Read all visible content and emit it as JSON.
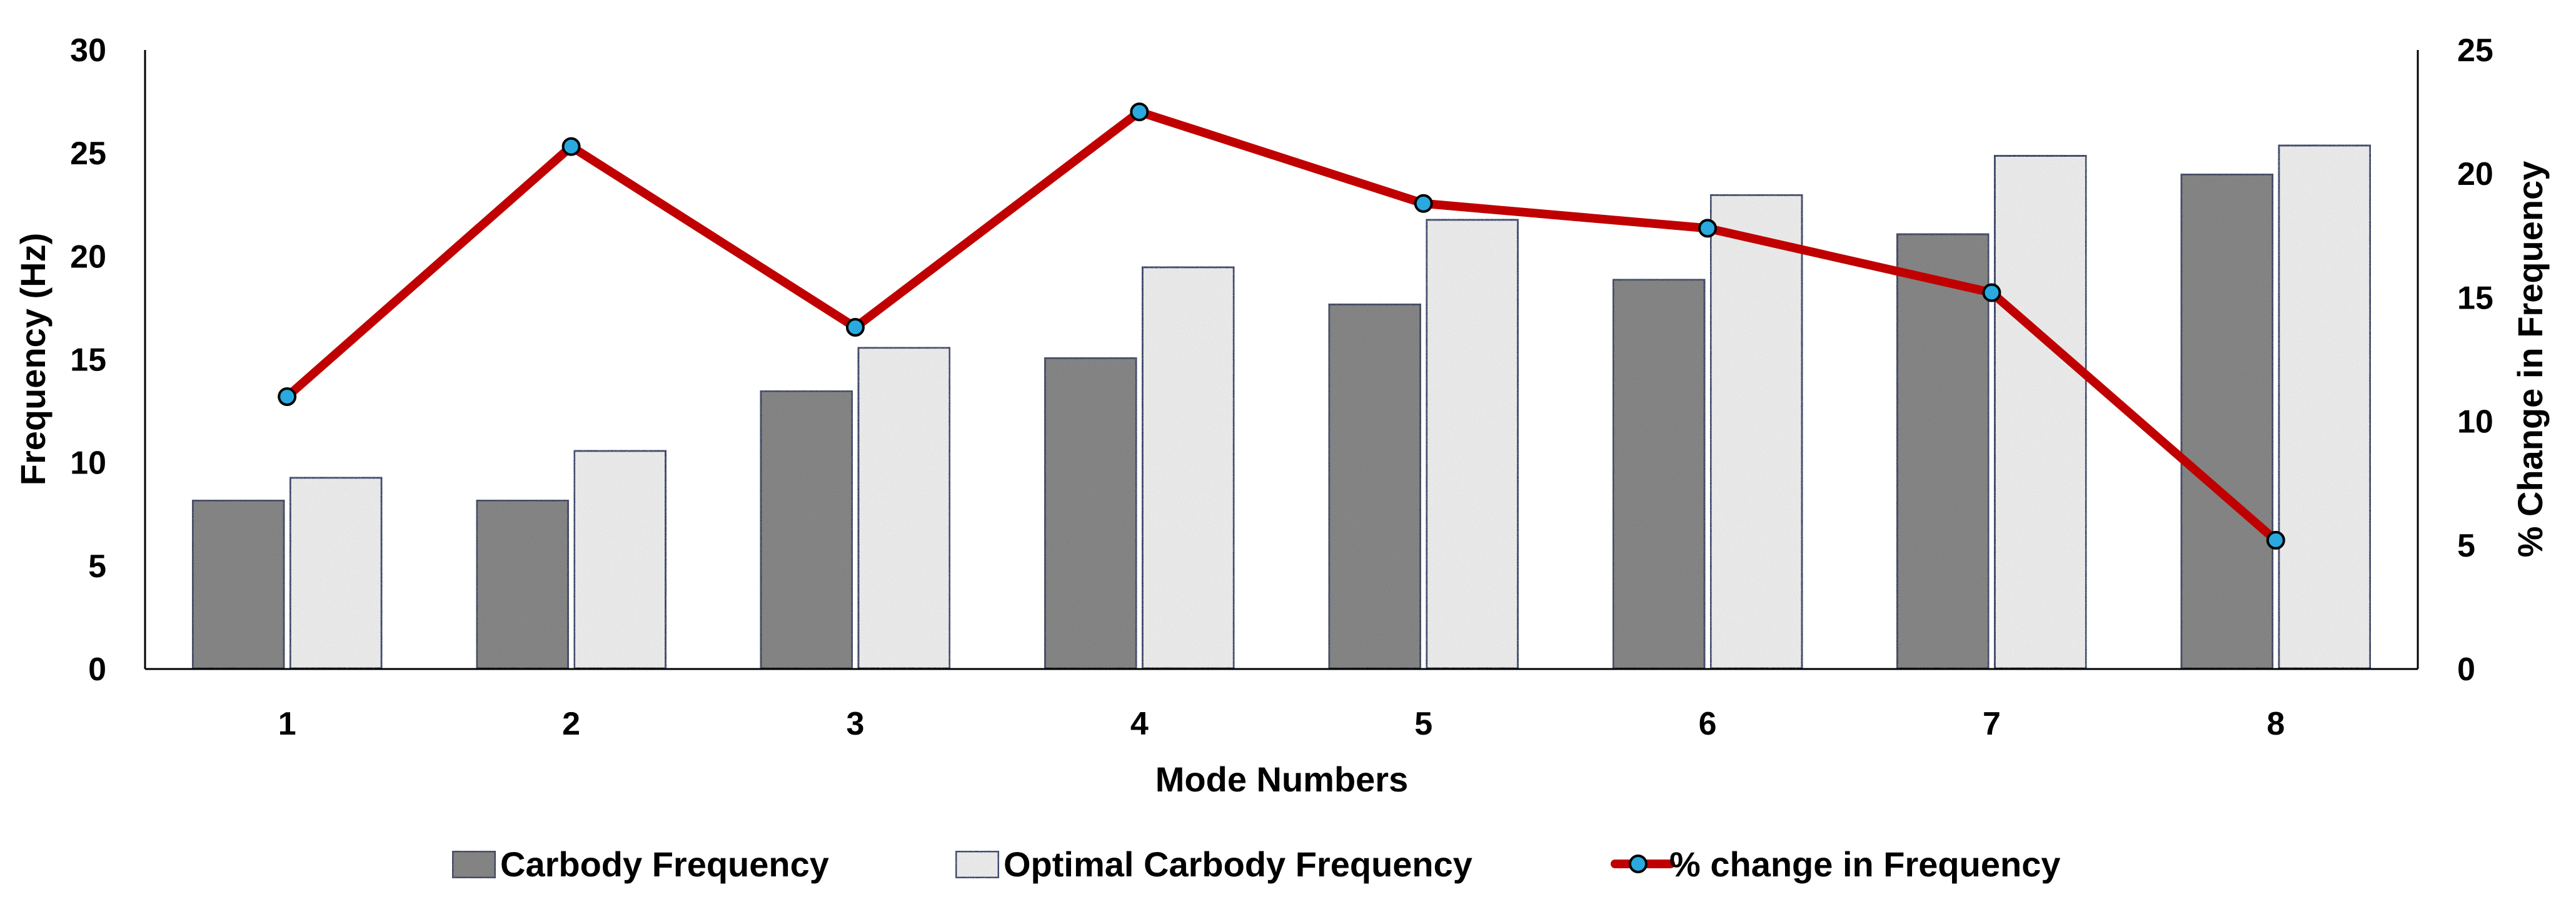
{
  "chart_data": {
    "type": "bar",
    "title": "",
    "xlabel": "Mode Numbers",
    "ylabel": "Frequency (Hz)",
    "y2label": "% Change in Frequency",
    "categories": [
      "1",
      "2",
      "3",
      "4",
      "5",
      "6",
      "7",
      "8"
    ],
    "ylim": [
      0,
      30
    ],
    "yticks": [
      "0",
      "5",
      "10",
      "15",
      "20",
      "25",
      "30"
    ],
    "y2lim": [
      0,
      25
    ],
    "y2ticks": [
      "0",
      "5",
      "10",
      "15",
      "20",
      "25"
    ],
    "grid": false,
    "legend_position": "bottom",
    "series": [
      {
        "name": "Carbody Frequency",
        "type": "bar",
        "axis": "left",
        "values": [
          8.2,
          8.2,
          13.5,
          15.1,
          17.7,
          18.9,
          21.1,
          24.0
        ],
        "color": "#8a8a8a"
      },
      {
        "name": "Optimal Carbody Frequency",
        "type": "bar",
        "axis": "left",
        "values": [
          9.3,
          10.6,
          15.6,
          19.5,
          21.8,
          23.0,
          24.9,
          25.4
        ],
        "color": "#ececec"
      },
      {
        "name": "% change in Frequency",
        "type": "line",
        "axis": "right",
        "values": [
          11.0,
          21.1,
          13.8,
          22.5,
          18.8,
          17.8,
          15.2,
          5.2
        ],
        "color": "#c00000",
        "marker_color": "#29a9e0"
      }
    ],
    "colors": {
      "bar_outline": "#1f2d5c",
      "axis": "#000000"
    }
  }
}
